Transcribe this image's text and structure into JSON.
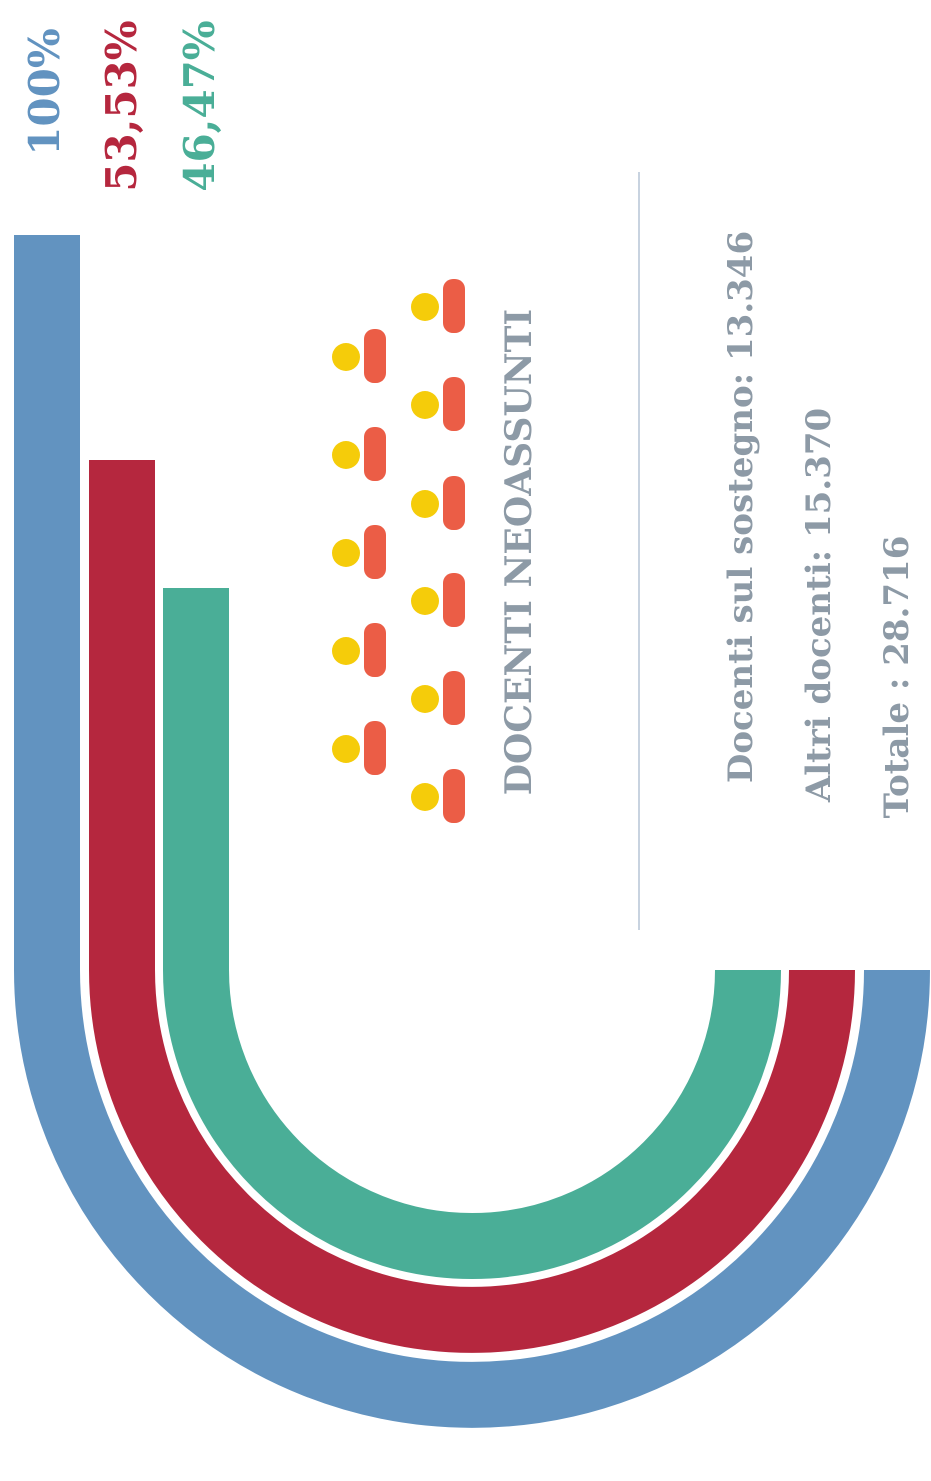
{
  "chart_data": {
    "type": "radial-bar",
    "title": "DOCENTI NEOASSUNTI",
    "series": [
      {
        "name": "Totale",
        "label": "Totale : 28.716",
        "value": 28716,
        "percent": 100,
        "percent_label": "100%",
        "color": "#6293c0"
      },
      {
        "name": "Altri docenti",
        "label": "Altri docenti: 15.370",
        "value": 15370,
        "percent": 53.53,
        "percent_label": "53,53%",
        "color": "#b5273e"
      },
      {
        "name": "Docenti sul sostegno",
        "label": "Docenti sul sostegno: 13.346",
        "value": 13346,
        "percent": 46.47,
        "percent_label": "46,47%",
        "color": "#4aae97"
      }
    ],
    "icon": {
      "name": "people-icon",
      "count": 11,
      "head_color": "#f5cc0a",
      "body_color": "#eb5d46"
    },
    "text_color": "#8d9aa6",
    "divider_color": "#c8d3e0"
  }
}
